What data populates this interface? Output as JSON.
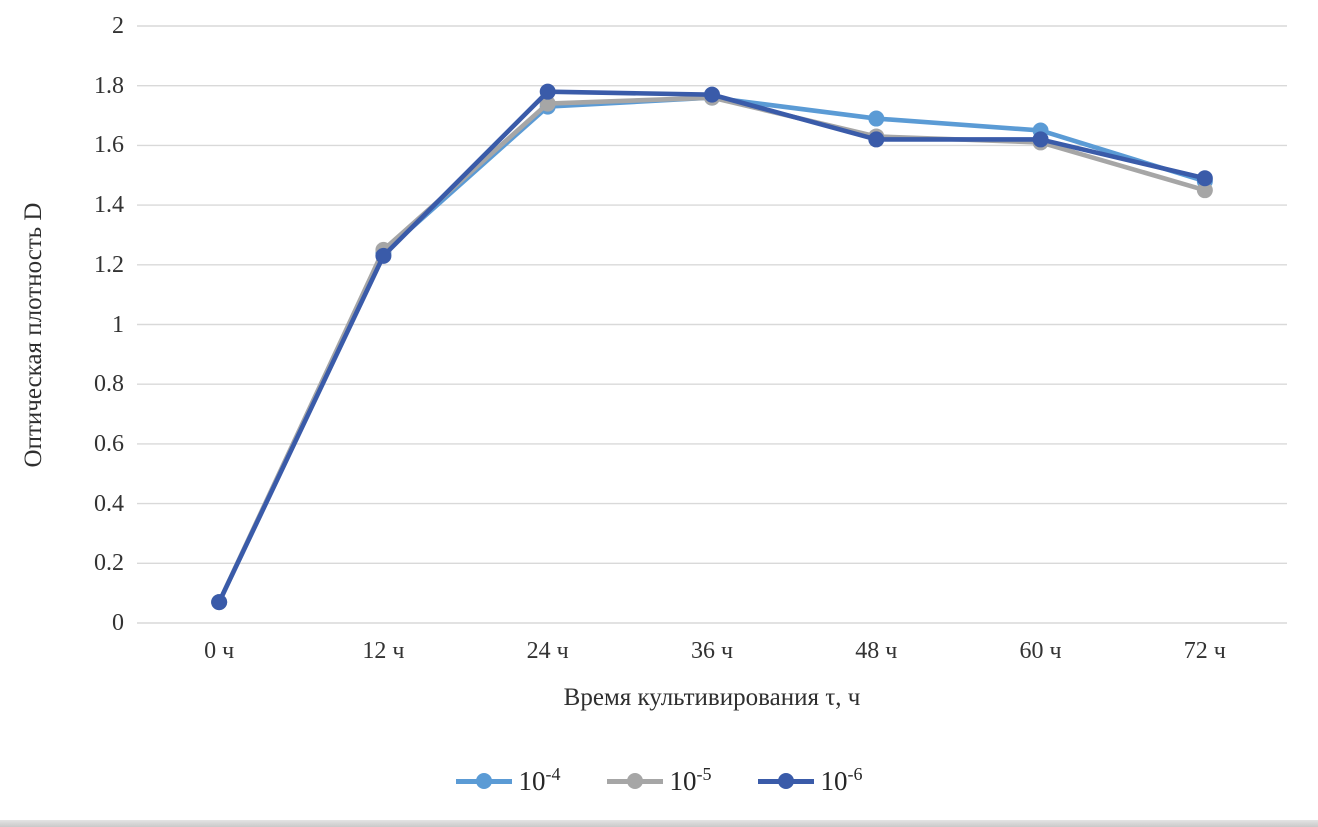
{
  "chart_data": {
    "type": "line",
    "title": "",
    "xlabel": "Время культивирования τ, ч",
    "ylabel": "Оптическая плотность D",
    "categories": [
      "0 ч",
      "12 ч",
      "24 ч",
      "36 ч",
      "48 ч",
      "60 ч",
      "72 ч"
    ],
    "y_tick_labels": [
      "0",
      "0.2",
      "0.4",
      "0.6",
      "0.8",
      "1",
      "1.2",
      "1.4",
      "1.6",
      "1.8",
      "2"
    ],
    "ylim": [
      0,
      2
    ],
    "grid": "horizontal-only",
    "gridline_color": "#d9d9d9",
    "axis_text_color": "#333333",
    "legend_position": "bottom-center",
    "series": [
      {
        "name": "10^-4",
        "label_base": "10",
        "label_exponent": "-4",
        "color": "#5b9bd5",
        "marker": "circle",
        "values": [
          0.07,
          1.24,
          1.73,
          1.76,
          1.69,
          1.65,
          1.48
        ]
      },
      {
        "name": "10^-5",
        "label_base": "10",
        "label_exponent": "-5",
        "color": "#a6a6a6",
        "marker": "circle",
        "values": [
          0.07,
          1.25,
          1.74,
          1.76,
          1.63,
          1.61,
          1.45
        ]
      },
      {
        "name": "10^-6",
        "label_base": "10",
        "label_exponent": "-6",
        "color": "#3a5ba9",
        "marker": "circle",
        "values": [
          0.07,
          1.23,
          1.78,
          1.77,
          1.62,
          1.62,
          1.49
        ]
      }
    ]
  }
}
